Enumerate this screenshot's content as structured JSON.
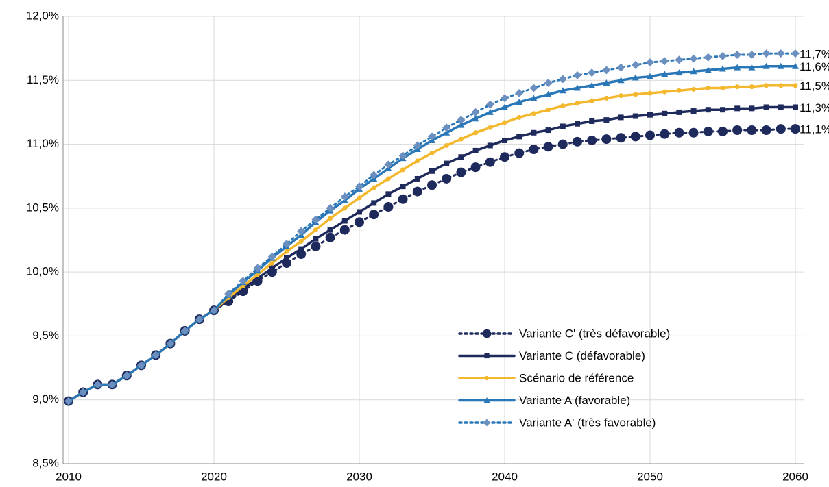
{
  "chart_data": {
    "type": "line",
    "x": [
      2010,
      2011,
      2012,
      2013,
      2014,
      2015,
      2016,
      2017,
      2018,
      2019,
      2020,
      2021,
      2022,
      2023,
      2024,
      2025,
      2026,
      2027,
      2028,
      2029,
      2030,
      2031,
      2032,
      2033,
      2034,
      2035,
      2036,
      2037,
      2038,
      2039,
      2040,
      2041,
      2042,
      2043,
      2044,
      2045,
      2046,
      2047,
      2048,
      2049,
      2050,
      2051,
      2052,
      2053,
      2054,
      2055,
      2056,
      2057,
      2058,
      2059,
      2060
    ],
    "xlim": [
      2010,
      2060
    ],
    "xticks": [
      2010,
      2020,
      2030,
      2040,
      2050,
      2060
    ],
    "ylim": [
      8.5,
      12.0
    ],
    "yticks": [
      {
        "value": 8.5,
        "label": "8,5%"
      },
      {
        "value": 9.0,
        "label": "9,0%"
      },
      {
        "value": 9.5,
        "label": "9,5%"
      },
      {
        "value": 10.0,
        "label": "10,0%"
      },
      {
        "value": 10.5,
        "label": "10,5%"
      },
      {
        "value": 11.0,
        "label": "11,0%"
      },
      {
        "value": 11.5,
        "label": "11,5%"
      },
      {
        "value": 12.0,
        "label": "12,0%"
      }
    ],
    "grid": true,
    "legend": "lower right",
    "series": [
      {
        "name": "Variante C' (très défavorable)",
        "color": "#1f2a5c",
        "marker": "circle",
        "dash": "dotted",
        "values": [
          8.99,
          9.06,
          9.12,
          9.12,
          9.19,
          9.27,
          9.35,
          9.44,
          9.54,
          9.63,
          9.7,
          9.77,
          9.85,
          9.93,
          10.0,
          10.07,
          10.14,
          10.2,
          10.27,
          10.33,
          10.39,
          10.45,
          10.51,
          10.57,
          10.63,
          10.68,
          10.73,
          10.78,
          10.82,
          10.86,
          10.9,
          10.93,
          10.96,
          10.98,
          11.0,
          11.02,
          11.03,
          11.04,
          11.05,
          11.06,
          11.07,
          11.08,
          11.09,
          11.09,
          11.1,
          11.1,
          11.11,
          11.11,
          11.11,
          11.12,
          11.12
        ],
        "value_labels": [
          null,
          null,
          null,
          null,
          null,
          null,
          null,
          null,
          null,
          null,
          null,
          null,
          null,
          null,
          null,
          null,
          null,
          null,
          null,
          null,
          null,
          null,
          null,
          null,
          null,
          null,
          null,
          null,
          null,
          null,
          null,
          null,
          null,
          null,
          null,
          null,
          null,
          null,
          null,
          null,
          null,
          null,
          null,
          null,
          null,
          null,
          null,
          null,
          null,
          null,
          "11,1%"
        ]
      },
      {
        "name": "Variante C (défavorable)",
        "color": "#1f2a5c",
        "marker": "square",
        "dash": "solid",
        "values": [
          8.99,
          9.06,
          9.12,
          9.12,
          9.19,
          9.27,
          9.35,
          9.44,
          9.54,
          9.63,
          9.7,
          9.78,
          9.87,
          9.95,
          10.03,
          10.11,
          10.18,
          10.26,
          10.33,
          10.4,
          10.47,
          10.54,
          10.61,
          10.67,
          10.73,
          10.79,
          10.85,
          10.9,
          10.95,
          10.99,
          11.03,
          11.06,
          11.09,
          11.11,
          11.14,
          11.16,
          11.18,
          11.19,
          11.21,
          11.22,
          11.23,
          11.24,
          11.25,
          11.26,
          11.27,
          11.27,
          11.28,
          11.28,
          11.29,
          11.29,
          11.29
        ],
        "value_labels": [
          null,
          null,
          null,
          null,
          null,
          null,
          null,
          null,
          null,
          null,
          null,
          null,
          null,
          null,
          null,
          null,
          null,
          null,
          null,
          null,
          null,
          null,
          null,
          null,
          null,
          null,
          null,
          null,
          null,
          null,
          null,
          null,
          null,
          null,
          null,
          null,
          null,
          null,
          null,
          null,
          null,
          null,
          null,
          null,
          null,
          null,
          null,
          null,
          null,
          null,
          "11,3%"
        ]
      },
      {
        "name": "Scénario de référence",
        "color": "#f4b82e",
        "marker": "dot",
        "dash": "solid",
        "values": [
          8.99,
          9.06,
          9.12,
          9.12,
          9.19,
          9.27,
          9.35,
          9.44,
          9.54,
          9.63,
          9.7,
          9.8,
          9.89,
          9.98,
          10.07,
          10.16,
          10.24,
          10.33,
          10.42,
          10.5,
          10.58,
          10.66,
          10.73,
          10.8,
          10.87,
          10.93,
          10.99,
          11.04,
          11.09,
          11.13,
          11.17,
          11.21,
          11.24,
          11.27,
          11.3,
          11.32,
          11.34,
          11.36,
          11.38,
          11.39,
          11.4,
          11.41,
          11.42,
          11.43,
          11.44,
          11.44,
          11.45,
          11.45,
          11.46,
          11.46,
          11.46
        ],
        "value_labels": [
          null,
          null,
          null,
          null,
          null,
          null,
          null,
          null,
          null,
          null,
          null,
          null,
          null,
          null,
          null,
          null,
          null,
          null,
          null,
          null,
          null,
          null,
          null,
          null,
          null,
          null,
          null,
          null,
          null,
          null,
          null,
          null,
          null,
          null,
          null,
          null,
          null,
          null,
          null,
          null,
          null,
          null,
          null,
          null,
          null,
          null,
          null,
          null,
          null,
          null,
          "11,5%"
        ]
      },
      {
        "name": "Variante A (favorable)",
        "color": "#2a77b8",
        "marker": "triangle",
        "dash": "solid",
        "values": [
          8.99,
          9.06,
          9.12,
          9.12,
          9.19,
          9.27,
          9.35,
          9.44,
          9.54,
          9.63,
          9.7,
          9.82,
          9.92,
          10.01,
          10.11,
          10.2,
          10.29,
          10.39,
          10.48,
          10.56,
          10.65,
          10.73,
          10.81,
          10.89,
          10.96,
          11.03,
          11.09,
          11.15,
          11.2,
          11.25,
          11.29,
          11.33,
          11.36,
          11.39,
          11.42,
          11.44,
          11.46,
          11.48,
          11.5,
          11.52,
          11.53,
          11.55,
          11.56,
          11.57,
          11.58,
          11.59,
          11.6,
          11.6,
          11.61,
          11.61,
          11.61
        ],
        "value_labels": [
          null,
          null,
          null,
          null,
          null,
          null,
          null,
          null,
          null,
          null,
          null,
          null,
          null,
          null,
          null,
          null,
          null,
          null,
          null,
          null,
          null,
          null,
          null,
          null,
          null,
          null,
          null,
          null,
          null,
          null,
          null,
          null,
          null,
          null,
          null,
          null,
          null,
          null,
          null,
          null,
          null,
          null,
          null,
          null,
          null,
          null,
          null,
          null,
          null,
          null,
          "11,6%"
        ]
      },
      {
        "name": "Variante A' (très favorable)",
        "color": "#2a77b8",
        "marker": "diamond",
        "dash": "dotted",
        "values": [
          8.99,
          9.06,
          9.12,
          9.12,
          9.19,
          9.27,
          9.35,
          9.44,
          9.54,
          9.63,
          9.7,
          9.83,
          9.93,
          10.03,
          10.12,
          10.22,
          10.32,
          10.41,
          10.5,
          10.59,
          10.67,
          10.76,
          10.84,
          10.91,
          10.99,
          11.06,
          11.13,
          11.19,
          11.25,
          11.31,
          11.36,
          11.4,
          11.44,
          11.48,
          11.51,
          11.54,
          11.56,
          11.58,
          11.6,
          11.62,
          11.64,
          11.65,
          11.66,
          11.67,
          11.68,
          11.69,
          11.7,
          11.7,
          11.71,
          11.71,
          11.71
        ],
        "value_labels": [
          null,
          null,
          null,
          null,
          null,
          null,
          null,
          null,
          null,
          null,
          null,
          null,
          null,
          null,
          null,
          null,
          null,
          null,
          null,
          null,
          null,
          null,
          null,
          null,
          null,
          null,
          null,
          null,
          null,
          null,
          null,
          null,
          null,
          null,
          null,
          null,
          null,
          null,
          null,
          null,
          null,
          null,
          null,
          null,
          null,
          null,
          null,
          null,
          null,
          null,
          "11,7%"
        ]
      }
    ]
  }
}
